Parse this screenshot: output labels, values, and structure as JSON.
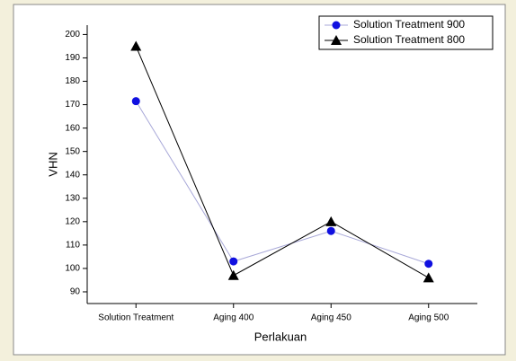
{
  "chart_data": {
    "type": "line",
    "x_label": "Perlakuan",
    "y_label": "VHN",
    "categories": [
      "Solution Treatment",
      "Aging 400",
      "Aging 450",
      "Aging 500"
    ],
    "series": [
      {
        "name": "Solution Treatment 900",
        "color": "#1010e0",
        "line_color": "#a8a8d8",
        "marker": "circle",
        "values": [
          171.5,
          103,
          116,
          102
        ]
      },
      {
        "name": "Solution Treatment 800",
        "color": "#000000",
        "line_color": "#000000",
        "marker": "triangle",
        "values": [
          195,
          97,
          120,
          96
        ]
      }
    ],
    "ylim": [
      85,
      204
    ],
    "yticks": [
      90,
      100,
      110,
      120,
      130,
      140,
      150,
      160,
      170,
      180,
      190,
      200
    ],
    "legend": "top-right"
  }
}
